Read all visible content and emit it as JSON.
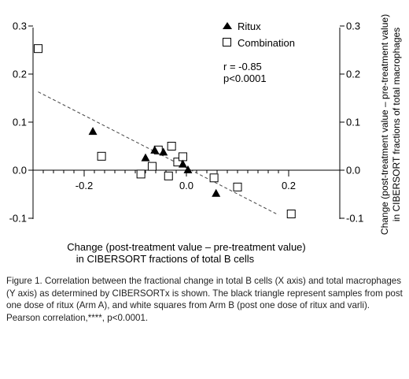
{
  "chart_data": {
    "type": "scatter",
    "xlabel_line1": "Change (post-treatment value – pre-treatment value)",
    "xlabel_line2": "in CIBERSORT fractions of total B cells",
    "ylabel_line1": "Change (post-treatment value – pre-treatment value)",
    "ylabel_line2": "in CIBERSORT fractions of total macrophages",
    "xlim": [
      -0.3,
      0.2
    ],
    "ylim": [
      -0.1,
      0.3
    ],
    "x_ticks": [
      -0.2,
      0.0,
      0.2
    ],
    "x_tick_labels": [
      "-0.2",
      "0.0",
      "0.2"
    ],
    "y_ticks": [
      0.3,
      0.2,
      0.1,
      0.0,
      -0.1
    ],
    "y_tick_labels": [
      "0.3",
      "0.2",
      "0.1",
      "0.0",
      "-0.1"
    ],
    "legend_position": "top-right",
    "annotation_r": "r = -0.85",
    "annotation_p": "p<0.0001",
    "series": [
      {
        "name": "Ritux",
        "marker": "filled-triangle",
        "color": "#000000",
        "x": [
          -0.183,
          -0.08,
          -0.062,
          -0.045,
          -0.007,
          0.003,
          0.058
        ],
        "y": [
          0.081,
          0.026,
          0.042,
          0.038,
          0.013,
          0.001,
          -0.048
        ]
      },
      {
        "name": "Combination",
        "marker": "open-square",
        "color": "#000000",
        "x": [
          -0.29,
          -0.166,
          -0.089,
          -0.067,
          -0.055,
          -0.035,
          -0.029,
          -0.017,
          -0.007,
          0.054,
          0.1,
          0.205
        ],
        "y": [
          0.253,
          0.029,
          -0.008,
          0.008,
          0.042,
          -0.012,
          0.05,
          0.017,
          0.028,
          -0.016,
          -0.035,
          -0.091
        ]
      }
    ],
    "trendline": {
      "x": [
        -0.29,
        0.18
      ],
      "y": [
        0.163,
        -0.093
      ]
    }
  },
  "caption": "Figure 1. Correlation between the fractional change in total B cells (X axis) and total macrophages (Y axis) as determined by CIBERSORTx is shown. The black triangle represent samples from post one dose of ritux (Arm A), and white squares from Arm B (post one dose of ritux and varli). Pearson correlation,****, p<0.0001."
}
